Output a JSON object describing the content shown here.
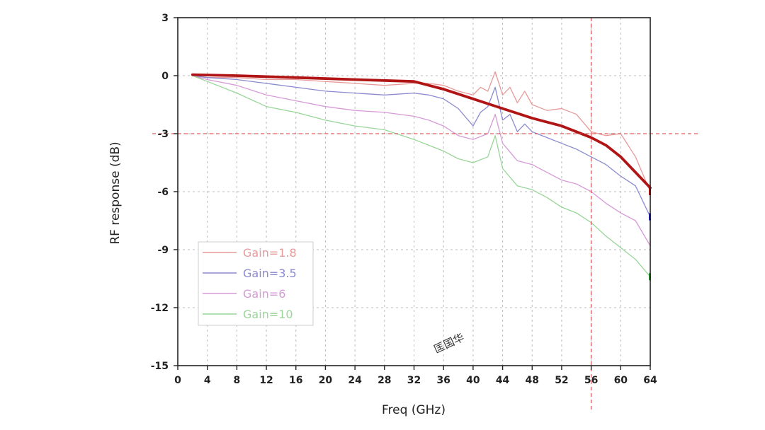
{
  "chart_data": {
    "type": "line",
    "xlabel": "Freq (GHz)",
    "ylabel": "RF response (dB)",
    "xlim": [
      0,
      64
    ],
    "ylim": [
      -15,
      3
    ],
    "x_ticks": [
      0,
      4,
      8,
      12,
      16,
      20,
      24,
      28,
      32,
      36,
      40,
      44,
      48,
      52,
      56,
      60,
      64
    ],
    "y_ticks": [
      3,
      0,
      -3,
      -6,
      -9,
      -12,
      -15
    ],
    "grid": true,
    "legend_position": "bottom-left",
    "series": [
      {
        "name": "Gain=1.8",
        "color": "#e79a9a",
        "x": [
          2,
          4,
          8,
          12,
          16,
          20,
          24,
          28,
          32,
          34,
          36,
          38,
          40,
          41,
          42,
          43,
          44,
          45,
          46,
          47,
          48,
          50,
          52,
          54,
          56,
          58,
          60,
          62,
          64
        ],
        "y": [
          0.0,
          -0.1,
          -0.1,
          -0.2,
          -0.2,
          -0.3,
          -0.4,
          -0.5,
          -0.4,
          -0.4,
          -0.5,
          -0.8,
          -1.0,
          -0.6,
          -0.8,
          0.2,
          -1.0,
          -0.6,
          -1.4,
          -0.8,
          -1.5,
          -1.8,
          -1.7,
          -2.0,
          -2.9,
          -3.1,
          -3.0,
          -4.2,
          -6.0
        ]
      },
      {
        "name": "Gain=3.5",
        "color": "#8a8ad0",
        "x": [
          2,
          4,
          8,
          12,
          16,
          20,
          24,
          28,
          32,
          34,
          36,
          38,
          40,
          41,
          42,
          43,
          44,
          45,
          46,
          47,
          48,
          50,
          52,
          54,
          56,
          58,
          60,
          62,
          64
        ],
        "y": [
          0.0,
          -0.1,
          -0.2,
          -0.4,
          -0.6,
          -0.8,
          -0.9,
          -1.0,
          -0.9,
          -1.0,
          -1.2,
          -1.7,
          -2.6,
          -1.9,
          -1.6,
          -0.6,
          -2.3,
          -2.0,
          -2.9,
          -2.5,
          -2.9,
          -3.2,
          -3.5,
          -3.8,
          -4.2,
          -4.6,
          -5.2,
          -5.7,
          -7.3
        ]
      },
      {
        "name": "Gain=6",
        "color": "#d69ad6",
        "x": [
          2,
          4,
          8,
          12,
          16,
          20,
          24,
          28,
          32,
          34,
          36,
          38,
          40,
          42,
          43,
          44,
          46,
          48,
          50,
          52,
          54,
          56,
          58,
          60,
          62,
          64
        ],
        "y": [
          0.0,
          -0.2,
          -0.5,
          -1.0,
          -1.3,
          -1.6,
          -1.8,
          -1.9,
          -2.1,
          -2.3,
          -2.6,
          -3.1,
          -3.3,
          -3.0,
          -2.0,
          -3.5,
          -4.4,
          -4.6,
          -5.0,
          -5.4,
          -5.6,
          -6.0,
          -6.6,
          -7.1,
          -7.5,
          -8.8
        ]
      },
      {
        "name": "Gain=10",
        "color": "#98d698",
        "x": [
          2,
          4,
          8,
          12,
          16,
          20,
          24,
          28,
          32,
          34,
          36,
          38,
          40,
          42,
          43,
          44,
          46,
          48,
          50,
          52,
          54,
          56,
          58,
          60,
          62,
          64
        ],
        "y": [
          0.0,
          -0.3,
          -0.9,
          -1.6,
          -1.9,
          -2.3,
          -2.6,
          -2.8,
          -3.3,
          -3.6,
          -3.9,
          -4.3,
          -4.5,
          -4.2,
          -3.1,
          -4.8,
          -5.7,
          -5.9,
          -6.3,
          -6.8,
          -7.1,
          -7.6,
          -8.3,
          -8.9,
          -9.5,
          -10.4
        ]
      },
      {
        "color": "#b01414",
        "x": [
          2,
          8,
          16,
          24,
          32,
          36,
          40,
          44,
          48,
          52,
          54,
          56,
          58,
          60,
          62,
          64
        ],
        "y": [
          0.05,
          0.0,
          -0.1,
          -0.2,
          -0.3,
          -0.7,
          -1.2,
          -1.7,
          -2.2,
          -2.6,
          -2.9,
          -3.2,
          -3.6,
          -4.2,
          -5.0,
          -5.8
        ]
      }
    ],
    "reference_lines": {
      "y": -3,
      "x": 56,
      "color": "#d23a3a"
    },
    "annotations": [
      "匡国华"
    ]
  }
}
